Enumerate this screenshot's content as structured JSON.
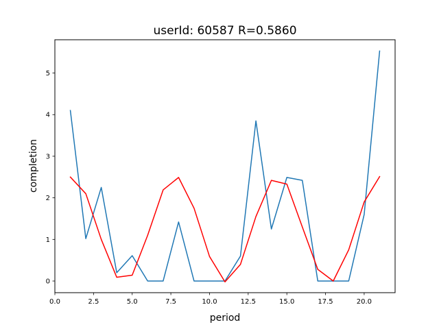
{
  "chart_data": {
    "type": "line",
    "title": "userId: 60587  R=0.5860",
    "xlabel": "period",
    "ylabel": "completion",
    "xlim": [
      0.0,
      22.0
    ],
    "ylim": [
      -0.28,
      5.8
    ],
    "xticks": [
      0.0,
      2.5,
      5.0,
      7.5,
      10.0,
      12.5,
      15.0,
      17.5,
      20.0
    ],
    "xtick_labels": [
      "0.0",
      "2.5",
      "5.0",
      "7.5",
      "10.0",
      "12.5",
      "15.0",
      "17.5",
      "20.0"
    ],
    "yticks": [
      0,
      1,
      2,
      3,
      4,
      5
    ],
    "ytick_labels": [
      "0",
      "1",
      "2",
      "3",
      "4",
      "5"
    ],
    "grid": false,
    "x": [
      1,
      2,
      3,
      4,
      5,
      6,
      7,
      8,
      9,
      10,
      11,
      12,
      13,
      14,
      15,
      16,
      17,
      18,
      19,
      20,
      21
    ],
    "series": [
      {
        "color": "#1f77b4",
        "values": [
          4.1,
          1.02,
          2.25,
          0.2,
          0.61,
          0.0,
          0.0,
          1.42,
          0.0,
          0.0,
          0.0,
          0.6,
          3.85,
          1.25,
          2.49,
          2.42,
          0.0,
          0.0,
          0.0,
          1.6,
          5.53
        ]
      },
      {
        "color": "#ff0000",
        "values": [
          2.5,
          2.1,
          1.0,
          0.09,
          0.14,
          1.1,
          2.19,
          2.49,
          1.75,
          0.59,
          -0.02,
          0.4,
          1.55,
          2.42,
          2.33,
          1.3,
          0.28,
          0.0,
          0.75,
          1.9,
          2.51
        ]
      }
    ]
  }
}
